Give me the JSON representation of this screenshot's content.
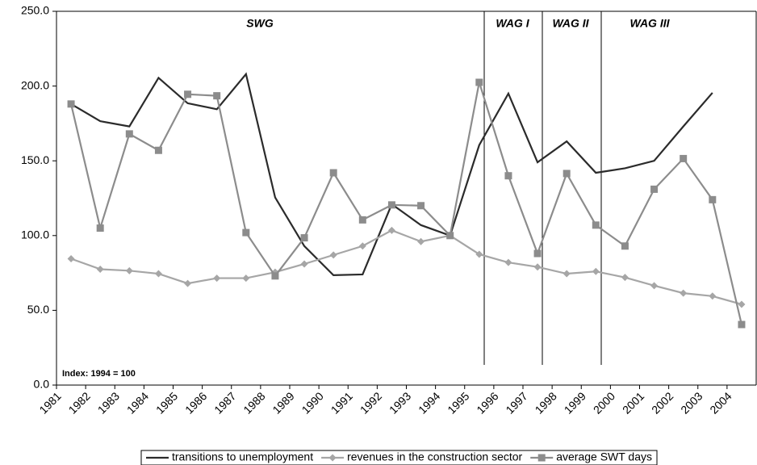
{
  "chart_data": {
    "type": "line",
    "categories": [
      "1981",
      "1982",
      "1983",
      "1984",
      "1985",
      "1986",
      "1987",
      "1988",
      "1989",
      "1990",
      "1991",
      "1992",
      "1993",
      "1994",
      "1995",
      "1996",
      "1997",
      "1998",
      "1999",
      "2000",
      "2001",
      "2002",
      "2003",
      "2004"
    ],
    "series": [
      {
        "name": "transitions to unemployment",
        "color": "#2b2b2b",
        "marker": "none",
        "values": [
          188,
          176.5,
          173,
          205.5,
          188.5,
          184.5,
          208,
          125.5,
          93,
          73.5,
          74,
          121,
          107,
          100,
          160.5,
          195,
          149,
          163,
          142,
          145,
          150,
          173,
          195.5,
          null
        ]
      },
      {
        "name": "revenues in the construction sector",
        "color": "#a6a6a6",
        "marker": "diamond",
        "values": [
          84.5,
          77.5,
          76.5,
          74.5,
          68,
          71.5,
          71.5,
          75.5,
          81,
          87,
          93,
          103.5,
          96,
          100,
          87.5,
          82,
          79,
          74.5,
          76,
          72,
          66.5,
          61.5,
          59.5,
          54
        ]
      },
      {
        "name": "average SWT days",
        "color": "#8c8c8c",
        "marker": "square",
        "values": [
          188,
          105,
          168,
          157,
          194.5,
          193.5,
          102,
          73,
          98.5,
          142,
          110.5,
          120.5,
          120,
          100,
          202.5,
          140,
          88,
          141.5,
          107,
          93,
          131,
          151.5,
          124,
          40.5
        ]
      }
    ],
    "ylim": [
      0,
      250
    ],
    "yticks": [
      {
        "value": 0,
        "label": "0.0"
      },
      {
        "value": 50,
        "label": "50.0"
      },
      {
        "value": 100,
        "label": "100.0"
      },
      {
        "value": 150,
        "label": "150.0"
      },
      {
        "value": 200,
        "label": "200.0"
      },
      {
        "value": 250,
        "label": "250.0"
      }
    ],
    "annotations": [
      "SWG",
      "WAG I",
      "WAG II",
      "WAG III",
      "Index: 1994 = 100"
    ],
    "legend": "bottom"
  }
}
